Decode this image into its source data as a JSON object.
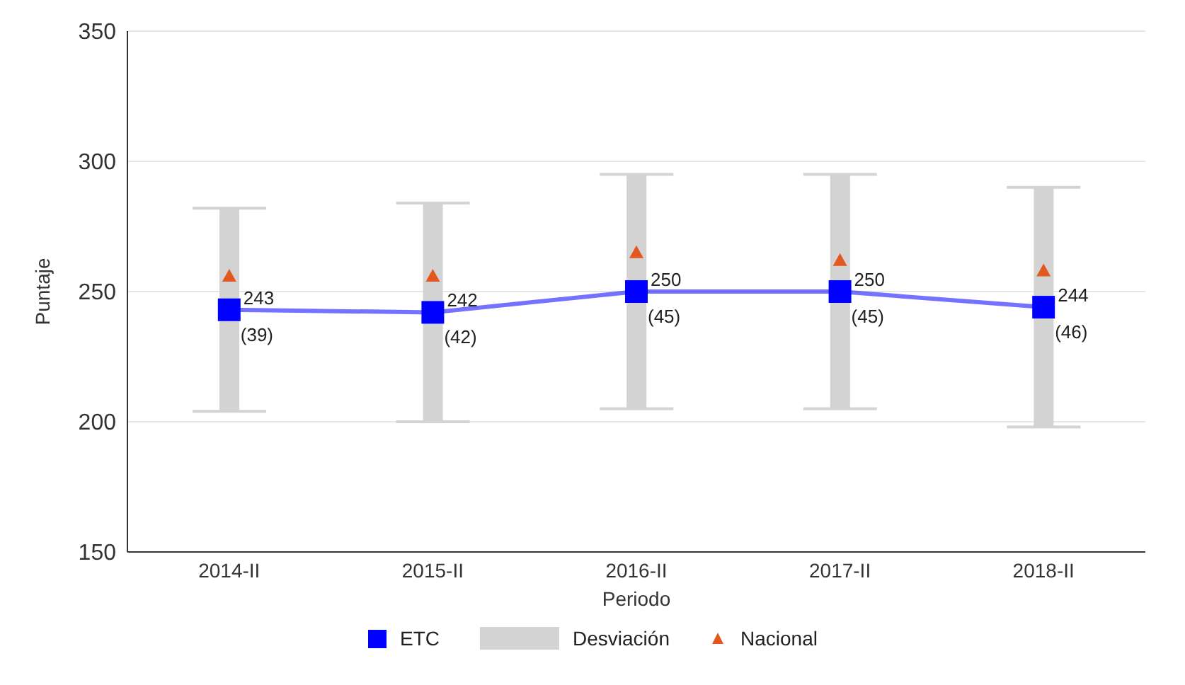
{
  "chart_data": {
    "type": "line",
    "xlabel": "Periodo",
    "ylabel": "Puntaje",
    "categories": [
      "2014-II",
      "2015-II",
      "2016-II",
      "2017-II",
      "2018-II"
    ],
    "series": [
      {
        "name": "ETC",
        "type": "line",
        "color": "#0000ff",
        "marker": "square",
        "values": [
          243,
          242,
          250,
          250,
          244
        ],
        "value_labels": [
          "243",
          "242",
          "250",
          "250",
          "244"
        ]
      },
      {
        "name": "Desviación",
        "type": "bar",
        "color": "#d3d3d3",
        "base": [
          204,
          200,
          205,
          205,
          198
        ],
        "values": [
          78,
          84,
          90,
          90,
          92
        ]
      },
      {
        "name": "Nacional",
        "type": "scatter",
        "color": "#e2581e",
        "marker": "triangle",
        "values": [
          256,
          256,
          265,
          262,
          258
        ]
      }
    ],
    "annotations": [
      {
        "text": "(39)",
        "x": "2014-II",
        "y": 243
      },
      {
        "text": "(42)",
        "x": "2015-II",
        "y": 242
      },
      {
        "text": "(45)",
        "x": "2016-II",
        "y": 250
      },
      {
        "text": "(45)",
        "x": "2017-II",
        "y": 250
      },
      {
        "text": "(46)",
        "x": "2018-II",
        "y": 244
      }
    ],
    "ylim": [
      150,
      350
    ],
    "yticks": [
      150,
      200,
      250,
      300,
      350
    ],
    "grid": "y",
    "legend": "bottom"
  }
}
